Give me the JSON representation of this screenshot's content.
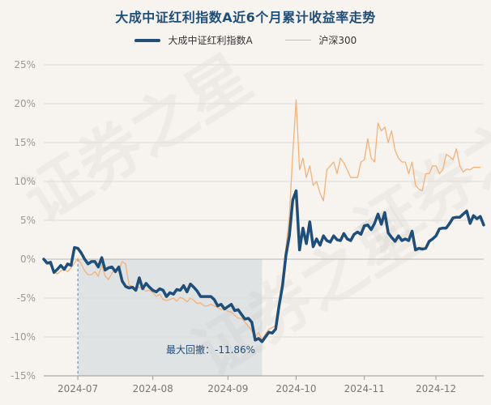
{
  "title": "大成中证红利指数A近6个月累计收益率走势",
  "watermark_text": "证券之星",
  "chart_data": {
    "type": "line",
    "title": "大成中证红利指数A近6个月累计收益率走势",
    "xlabel": "",
    "ylabel": "",
    "ylim": [
      -15,
      25
    ],
    "yticks": [
      -15,
      -10,
      -5,
      0,
      5,
      10,
      15,
      20,
      25
    ],
    "ytick_labels": [
      "-15%",
      "-10%",
      "-5%",
      "0%",
      "5%",
      "10%",
      "15%",
      "20%",
      "25%"
    ],
    "xtick_labels": [
      "2024-07",
      "2024-08",
      "2024-09",
      "2024-10",
      "2024-11",
      "2024-12"
    ],
    "xtick_index": [
      10,
      32,
      54,
      74,
      94,
      115
    ],
    "legend_position": "top-center",
    "grid": "horizontal",
    "series": [
      {
        "name": "大成中证红利指数A",
        "color": "#1f4e79",
        "values": [
          0.0,
          -0.5,
          -0.4,
          -1.7,
          -1.3,
          -0.8,
          -1.3,
          -0.6,
          -0.8,
          1.5,
          1.4,
          0.8,
          0.0,
          -0.6,
          -0.3,
          -0.3,
          -1.0,
          0.2,
          -1.4,
          -1.1,
          -1.0,
          -1.6,
          -1.0,
          -2.8,
          -3.5,
          -3.7,
          -3.6,
          -4.0,
          -2.4,
          -3.8,
          -3.1,
          -3.6,
          -4.0,
          -4.2,
          -3.8,
          -4.0,
          -4.8,
          -4.3,
          -4.5,
          -3.9,
          -4.0,
          -3.4,
          -4.2,
          -3.2,
          -3.6,
          -4.1,
          -4.8,
          -4.8,
          -4.8,
          -4.8,
          -5.2,
          -6.0,
          -5.8,
          -6.4,
          -6.1,
          -5.8,
          -6.6,
          -6.5,
          -7.1,
          -7.7,
          -7.6,
          -8.1,
          -10.4,
          -10.2,
          -10.6,
          -10.0,
          -9.4,
          -9.5,
          -9.0,
          -6.0,
          -3.4,
          0.5,
          3.0,
          7.6,
          8.8,
          1.2,
          4.0,
          2.0,
          4.8,
          1.6,
          2.6,
          1.8,
          3.0,
          2.4,
          2.2,
          3.0,
          2.5,
          2.4,
          3.3,
          2.6,
          2.4,
          3.2,
          3.5,
          3.2,
          4.3,
          4.4,
          3.8,
          4.6,
          5.8,
          4.5,
          6.0,
          3.4,
          2.8,
          2.3,
          3.0,
          2.4,
          2.6,
          2.4,
          3.6,
          1.2,
          1.4,
          1.3,
          1.4,
          2.3,
          2.6,
          3.0,
          3.9,
          4.0,
          4.0,
          4.6,
          5.3,
          5.4,
          5.4,
          5.8,
          6.2,
          4.6,
          5.6,
          5.2,
          5.5,
          4.4
        ]
      },
      {
        "name": "沪深300",
        "color": "#f2b27a",
        "values": [
          0.0,
          -0.5,
          -0.8,
          -1.6,
          -1.9,
          -1.5,
          -1.3,
          -1.6,
          -1.1,
          -0.5,
          0.1,
          -0.6,
          -1.5,
          -2.0,
          -2.0,
          -1.6,
          -2.2,
          -0.7,
          -2.2,
          -2.6,
          -1.8,
          -1.3,
          -1.5,
          -0.3,
          -0.6,
          -3.3,
          -3.5,
          -3.8,
          -3.6,
          -3.8,
          -4.1,
          -4.0,
          -4.3,
          -4.8,
          -4.5,
          -5.2,
          -5.3,
          -5.2,
          -5.0,
          -5.4,
          -4.9,
          -5.1,
          -5.5,
          -5.0,
          -5.3,
          -5.7,
          -5.6,
          -6.0,
          -6.0,
          -5.8,
          -6.0,
          -6.2,
          -6.5,
          -6.4,
          -6.7,
          -6.8,
          -7.2,
          -7.6,
          -7.6,
          -8.1,
          -8.6,
          -9.2,
          -10.0,
          -9.4,
          -10.4,
          -9.6,
          -9.0,
          -8.8,
          -8.5,
          -6.0,
          -2.5,
          1.5,
          5.5,
          13.5,
          20.5,
          11.5,
          13.0,
          10.5,
          12.0,
          9.5,
          10.0,
          8.5,
          7.5,
          11.5,
          12.0,
          12.5,
          11.0,
          13.0,
          12.4,
          11.5,
          10.5,
          10.5,
          10.5,
          12.5,
          12.8,
          15.5,
          13.0,
          12.5,
          17.5,
          16.5,
          17.0,
          15.0,
          16.5,
          14.0,
          13.0,
          12.5,
          12.5,
          11.0,
          12.5,
          9.5,
          9.0,
          8.8,
          11.0,
          11.0,
          12.0,
          12.0,
          11.0,
          11.5,
          13.5,
          13.2,
          12.8,
          14.2,
          12.0,
          11.2,
          11.6,
          11.5,
          11.8,
          11.8,
          11.8
        ]
      }
    ],
    "annotations": [
      {
        "text": "最大回撤：-11.86%",
        "shaded_from_index": 10,
        "shaded_to_index": 64,
        "trough_value": -11.86
      }
    ]
  }
}
